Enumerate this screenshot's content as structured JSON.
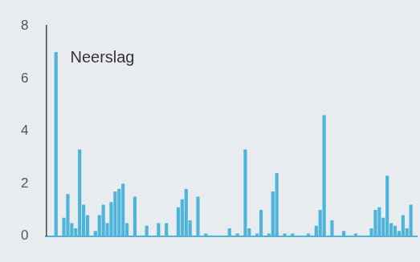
{
  "chart_data": {
    "type": "bar",
    "title": "Neerslag",
    "categories": [
      null,
      null,
      null,
      null,
      null,
      null,
      null,
      null,
      null,
      null,
      null,
      null,
      null,
      null,
      null,
      null,
      null,
      null,
      null,
      null,
      null,
      null,
      null,
      null,
      null,
      null,
      null,
      null,
      null,
      null,
      null,
      null,
      null,
      null,
      null,
      null,
      null,
      null,
      null,
      null,
      null,
      null,
      null,
      null,
      null,
      null,
      null,
      null,
      null,
      null,
      null,
      null,
      null,
      null,
      null,
      null,
      null,
      null,
      null,
      null,
      null,
      null,
      null,
      null,
      null,
      null,
      null,
      null,
      null,
      null,
      null,
      null,
      null,
      null,
      null,
      null,
      null,
      null,
      null,
      null,
      null,
      null,
      null,
      null,
      null,
      null,
      null,
      null,
      null,
      null,
      null,
      null,
      null,
      null
    ],
    "values": [
      0,
      0,
      7.0,
      0,
      0.7,
      1.6,
      0.5,
      0.3,
      3.3,
      1.2,
      0.8,
      0,
      0.2,
      0.8,
      1.2,
      0.5,
      1.3,
      1.7,
      1.8,
      2.0,
      0.5,
      0,
      1.5,
      0,
      0,
      0.4,
      0,
      0,
      0.5,
      0,
      0.5,
      0,
      0,
      1.1,
      1.4,
      1.8,
      0.6,
      0,
      1.5,
      0,
      0.1,
      0,
      0,
      0,
      0,
      0,
      0.3,
      0,
      0.1,
      0,
      3.3,
      0.3,
      0,
      0.1,
      1.0,
      0,
      0.1,
      1.7,
      2.4,
      0,
      0.1,
      0,
      0.1,
      0,
      0,
      0,
      0.1,
      0,
      0.4,
      1.0,
      4.6,
      0,
      0.6,
      0,
      0,
      0.2,
      0,
      0,
      0.1,
      0,
      0,
      0,
      0.3,
      1.0,
      1.1,
      0.7,
      2.3,
      0.5,
      0.4,
      0.2,
      0.8,
      0.3,
      1.2,
      0
    ],
    "color": "#4fb4da",
    "ylim": [
      0,
      8
    ],
    "yticks": [
      0,
      2,
      4,
      6,
      8
    ],
    "grid": false,
    "tick_labels": "y"
  }
}
